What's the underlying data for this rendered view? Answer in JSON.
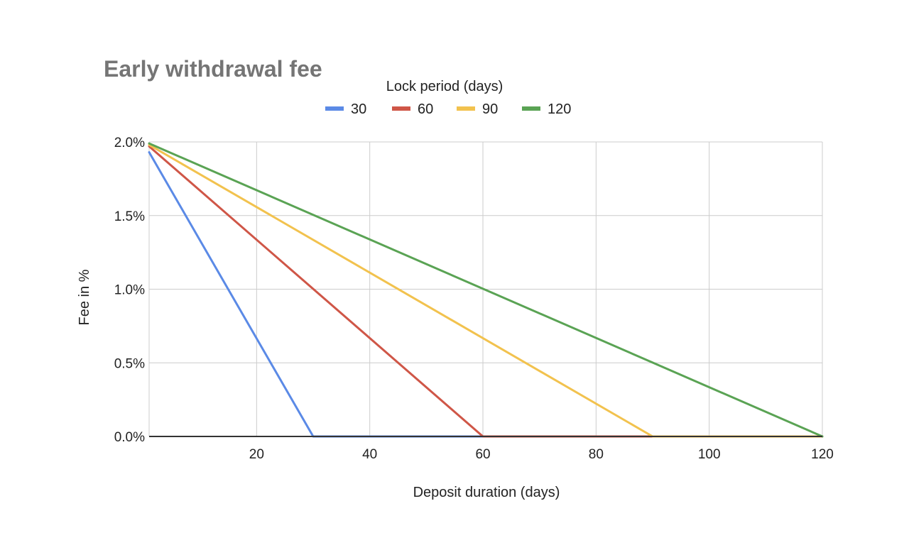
{
  "chart_data": {
    "type": "line",
    "title": "Early withdrawal fee",
    "legend_title": "Lock period (days)",
    "legend_position": "top",
    "xlabel": "Deposit duration (days)",
    "ylabel": "Fee in %",
    "xlim": [
      1,
      120
    ],
    "ylim": [
      0,
      2
    ],
    "x_ticks": [
      20,
      40,
      60,
      80,
      100,
      120
    ],
    "x_tick_labels": [
      "20",
      "40",
      "60",
      "80",
      "100",
      "120"
    ],
    "y_ticks": [
      0,
      0.5,
      1,
      1.5,
      2
    ],
    "y_tick_labels": [
      "0.0%",
      "0.5%",
      "1.0%",
      "1.5%",
      "2.0%"
    ],
    "grid": true,
    "series": [
      {
        "name": "30",
        "color": "#5b8ae6",
        "points": [
          [
            1,
            1.93
          ],
          [
            30,
            0
          ],
          [
            120,
            0
          ]
        ]
      },
      {
        "name": "60",
        "color": "#cf5647",
        "points": [
          [
            1,
            1.97
          ],
          [
            60,
            0
          ],
          [
            120,
            0
          ]
        ]
      },
      {
        "name": "90",
        "color": "#f2c24e",
        "points": [
          [
            1,
            1.98
          ],
          [
            90,
            0
          ],
          [
            120,
            0
          ]
        ]
      },
      {
        "name": "120",
        "color": "#5aa354",
        "points": [
          [
            1,
            1.99
          ],
          [
            120,
            0
          ]
        ]
      }
    ]
  }
}
